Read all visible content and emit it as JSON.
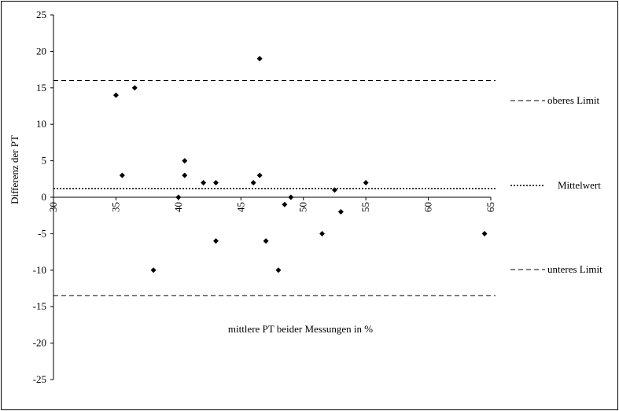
{
  "chart_data": {
    "type": "scatter",
    "title": "",
    "xlabel": "mittlere PT beider Messungen in %",
    "ylabel": "Differenz der PT",
    "xlim": [
      30,
      65
    ],
    "ylim": [
      -25,
      25
    ],
    "x_ticks": [
      30,
      35,
      40,
      45,
      50,
      55,
      60,
      65
    ],
    "y_ticks": [
      25,
      20,
      15,
      10,
      5,
      0,
      -5,
      -10,
      -15,
      -20,
      -25
    ],
    "grid": false,
    "marker": "diamond",
    "series": [
      {
        "name": "",
        "points": [
          {
            "x": 35.0,
            "y": 14
          },
          {
            "x": 35.5,
            "y": 3
          },
          {
            "x": 36.5,
            "y": 15
          },
          {
            "x": 38.0,
            "y": -10
          },
          {
            "x": 40.0,
            "y": 0
          },
          {
            "x": 40.5,
            "y": 5
          },
          {
            "x": 40.5,
            "y": 3
          },
          {
            "x": 42.0,
            "y": 2
          },
          {
            "x": 43.0,
            "y": 2
          },
          {
            "x": 43.0,
            "y": -6
          },
          {
            "x": 46.0,
            "y": 2
          },
          {
            "x": 46.5,
            "y": 19
          },
          {
            "x": 46.5,
            "y": 3
          },
          {
            "x": 47.0,
            "y": -6
          },
          {
            "x": 48.0,
            "y": -10
          },
          {
            "x": 48.5,
            "y": -1
          },
          {
            "x": 49.0,
            "y": 0
          },
          {
            "x": 51.5,
            "y": -5
          },
          {
            "x": 52.5,
            "y": 1
          },
          {
            "x": 53.0,
            "y": -2
          },
          {
            "x": 55.0,
            "y": 2
          },
          {
            "x": 64.5,
            "y": -5
          }
        ]
      }
    ],
    "reference_lines": [
      {
        "name": "oberes Limit",
        "y": 16,
        "style": "dashed"
      },
      {
        "name": "Mittelwert",
        "y": 1.2,
        "style": "dotted"
      },
      {
        "name": "unteres Limit",
        "y": -13.5,
        "style": "dashed"
      }
    ],
    "legend_placement": "right"
  },
  "colors": {
    "ink": "#000000",
    "background": "#ffffff"
  }
}
